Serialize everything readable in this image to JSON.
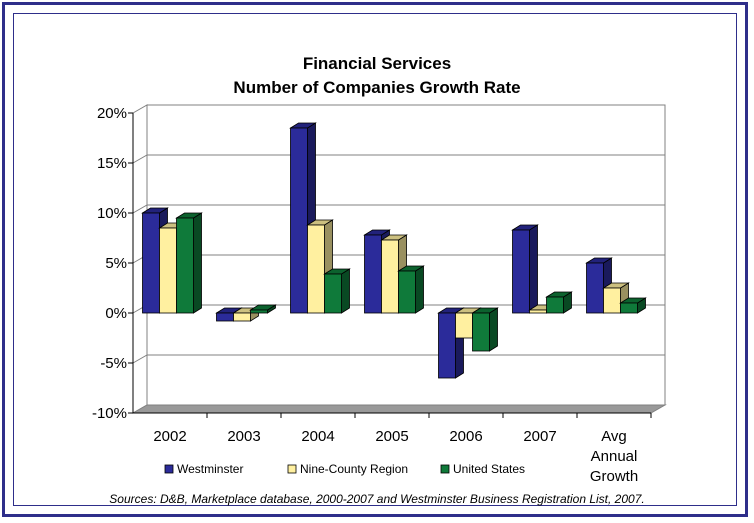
{
  "chart_data": {
    "type": "bar",
    "title": "Financial Services",
    "subtitle": "Number of Companies Growth Rate",
    "categories": [
      "2002",
      "2003",
      "2004",
      "2005",
      "2006",
      "2007",
      "Avg Annual Growth"
    ],
    "series": [
      {
        "name": "Westminster",
        "color": "#2b2b9a",
        "values": [
          10.0,
          -0.8,
          18.5,
          7.8,
          -6.5,
          8.3,
          5.0
        ]
      },
      {
        "name": "Nine-County Region",
        "color": "#fff0a0",
        "values": [
          8.5,
          -0.8,
          8.8,
          7.3,
          -2.5,
          0.3,
          2.5
        ]
      },
      {
        "name": "United States",
        "color": "#0f7a3a",
        "values": [
          9.5,
          0.3,
          3.9,
          4.2,
          -3.8,
          1.6,
          1.0
        ]
      }
    ],
    "y_tick_labels": [
      "20%",
      "15%",
      "10%",
      "5%",
      "0%",
      "-5%",
      "-10%"
    ],
    "ylim": [
      -10,
      20
    ],
    "y_unit": "%",
    "grid": true,
    "legend_position": "bottom",
    "source": "Sources: D&B, Marketplace database, 2000-2007 and Westminster Business Registration List, 2007."
  }
}
